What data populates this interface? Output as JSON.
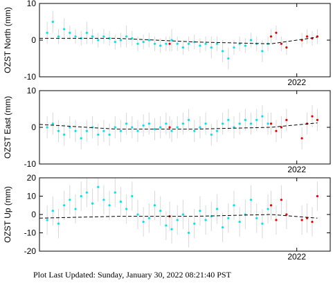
{
  "footer": "Plot Last Updated:   Sunday, January 30, 2022 08:21:40 PST",
  "chart_data": [
    {
      "type": "scatter",
      "y_label": "OZST North (mm)",
      "xlim": [
        2021.0,
        2022.13
      ],
      "xticks": [
        2022
      ],
      "ylim": [
        -10,
        10
      ],
      "yticks": [
        -10,
        0,
        10
      ],
      "series": [
        {
          "color": "#00e5ee",
          "x": [
            2021.03,
            2021.052,
            2021.074,
            2021.096,
            2021.118,
            2021.14,
            2021.162,
            2021.184,
            2021.206,
            2021.228,
            2021.25,
            2021.272,
            2021.294,
            2021.316,
            2021.338,
            2021.36,
            2021.382,
            2021.404,
            2021.426,
            2021.448,
            2021.47,
            2021.492,
            2021.514,
            2021.536,
            2021.558,
            2021.58,
            2021.602,
            2021.624,
            2021.646,
            2021.668,
            2021.69,
            2021.712,
            2021.734,
            2021.756,
            2021.778,
            2021.8,
            2021.822,
            2021.844,
            2021.866,
            2021.888
          ],
          "values": [
            2,
            5,
            1,
            3,
            2,
            1,
            0.5,
            2,
            1,
            0,
            1,
            0.5,
            -0.5,
            0,
            1,
            0.5,
            -1,
            -0.5,
            0,
            -1,
            -1.5,
            -1,
            0,
            -1,
            -2,
            -1,
            -0.5,
            -1.5,
            -1,
            -2,
            -1,
            -3,
            -5,
            -2,
            -1,
            -1.5,
            0,
            -1,
            -3,
            -1
          ],
          "errors": [
            3,
            3,
            2,
            3,
            2,
            2,
            2,
            3,
            2,
            2,
            2,
            2,
            2,
            2,
            3,
            2,
            2,
            2,
            2,
            2,
            2,
            2,
            3,
            2,
            2,
            2,
            2,
            2,
            2,
            3,
            2,
            3,
            3,
            2,
            2,
            2,
            2,
            2,
            3,
            2
          ]
        },
        {
          "color": "#ee0000",
          "x": [
            2021.506,
            2021.9,
            2021.92,
            2021.94,
            2021.96,
            2022.02,
            2022.04,
            2022.06,
            2022.08
          ],
          "values": [
            -1,
            1,
            2,
            -1,
            -2,
            0,
            1,
            0.5,
            1
          ],
          "errors": [
            2,
            2,
            2,
            2,
            2,
            2,
            2,
            2,
            2
          ]
        },
        {
          "color": "#000000",
          "dashed": true,
          "x": [
            2021.0,
            2021.3,
            2021.6,
            2021.9,
            2022.08
          ],
          "values": [
            0.5,
            0.5,
            -0.5,
            -1,
            0.8
          ]
        }
      ]
    },
    {
      "type": "scatter",
      "y_label": "OZST East (mm)",
      "xlim": [
        2021.0,
        2022.13
      ],
      "xticks": [
        2022
      ],
      "ylim": [
        -10,
        10
      ],
      "yticks": [
        -10,
        0,
        10
      ],
      "series": [
        {
          "color": "#00e5ee",
          "x": [
            2021.03,
            2021.052,
            2021.074,
            2021.096,
            2021.118,
            2021.14,
            2021.162,
            2021.184,
            2021.206,
            2021.228,
            2021.25,
            2021.272,
            2021.294,
            2021.316,
            2021.338,
            2021.36,
            2021.382,
            2021.404,
            2021.426,
            2021.448,
            2021.47,
            2021.492,
            2021.514,
            2021.536,
            2021.558,
            2021.58,
            2021.602,
            2021.624,
            2021.646,
            2021.668,
            2021.69,
            2021.712,
            2021.734,
            2021.756,
            2021.778,
            2021.8,
            2021.822,
            2021.844,
            2021.866,
            2021.888
          ],
          "values": [
            0,
            1,
            -1,
            -2,
            0,
            -1,
            -3,
            -1,
            0,
            -2,
            -1,
            -2,
            0,
            -1,
            1,
            0,
            -1,
            0.5,
            1,
            -0.5,
            0,
            1,
            -1,
            0,
            1,
            2,
            -1,
            0,
            1,
            -2,
            -1,
            1,
            2,
            0,
            1,
            2,
            1,
            2,
            3,
            1
          ],
          "errors": [
            3,
            3,
            3,
            3,
            3,
            3,
            3,
            3,
            3,
            3,
            3,
            3,
            3,
            3,
            3,
            3,
            3,
            3,
            3,
            3,
            3,
            3,
            3,
            3,
            3,
            3,
            3,
            3,
            3,
            3,
            3,
            3,
            3,
            3,
            3,
            3,
            3,
            3,
            3,
            3
          ]
        },
        {
          "color": "#ee0000",
          "x": [
            2021.506,
            2021.9,
            2021.92,
            2021.94,
            2021.96,
            2022.02,
            2022.04,
            2022.06,
            2022.08
          ],
          "values": [
            0,
            1,
            -1,
            0,
            2,
            -3,
            1,
            3,
            2
          ],
          "errors": [
            3,
            3,
            3,
            3,
            3,
            3,
            3,
            3,
            3
          ]
        },
        {
          "color": "#000000",
          "dashed": true,
          "x": [
            2021.0,
            2021.3,
            2021.6,
            2021.9,
            2022.08
          ],
          "values": [
            0.8,
            -0.5,
            -0.5,
            0,
            1.2
          ]
        }
      ]
    },
    {
      "type": "scatter",
      "y_label": "OZST Up (mm)",
      "xlim": [
        2021.0,
        2022.13
      ],
      "xticks": [
        2022
      ],
      "ylim": [
        -20,
        20
      ],
      "yticks": [
        -20,
        -10,
        0,
        10,
        20
      ],
      "series": [
        {
          "color": "#00e5ee",
          "x": [
            2021.03,
            2021.052,
            2021.074,
            2021.096,
            2021.118,
            2021.14,
            2021.162,
            2021.184,
            2021.206,
            2021.228,
            2021.25,
            2021.272,
            2021.294,
            2021.316,
            2021.338,
            2021.36,
            2021.382,
            2021.404,
            2021.426,
            2021.448,
            2021.47,
            2021.492,
            2021.514,
            2021.536,
            2021.558,
            2021.58,
            2021.602,
            2021.624,
            2021.646,
            2021.668,
            2021.69,
            2021.712,
            2021.734,
            2021.756,
            2021.778,
            2021.8,
            2021.822,
            2021.844,
            2021.866,
            2021.888
          ],
          "values": [
            -3,
            2,
            -5,
            5,
            8,
            3,
            10,
            12,
            6,
            15,
            8,
            5,
            12,
            7,
            3,
            10,
            0,
            -4,
            -2,
            5,
            2,
            -6,
            -8,
            -3,
            0,
            -10,
            -5,
            2,
            -3,
            -1,
            3,
            -7,
            -2,
            5,
            -4,
            0,
            8,
            -2,
            -5,
            3
          ],
          "errors": [
            8,
            8,
            8,
            8,
            8,
            8,
            8,
            8,
            8,
            8,
            8,
            8,
            8,
            8,
            8,
            8,
            8,
            8,
            8,
            8,
            8,
            8,
            8,
            8,
            8,
            8,
            8,
            8,
            8,
            8,
            8,
            8,
            8,
            8,
            8,
            8,
            8,
            8,
            8,
            8
          ]
        },
        {
          "color": "#ee0000",
          "x": [
            2021.506,
            2021.9,
            2021.92,
            2021.94,
            2021.96,
            2022.02,
            2022.04,
            2022.06,
            2022.08
          ],
          "values": [
            -1,
            5,
            -3,
            8,
            0,
            -3,
            -2,
            -4,
            10
          ],
          "errors": [
            8,
            8,
            8,
            8,
            8,
            8,
            8,
            8,
            8
          ]
        },
        {
          "color": "#000000",
          "dashed": true,
          "x": [
            2021.0,
            2021.3,
            2021.6,
            2021.9,
            2022.08
          ],
          "values": [
            -2,
            -1,
            -1,
            0,
            -2
          ]
        }
      ]
    }
  ]
}
